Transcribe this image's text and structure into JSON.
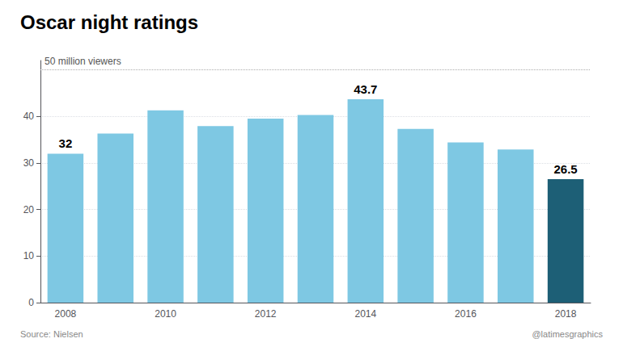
{
  "chart_data": {
    "type": "bar",
    "title": "Oscar night ratings",
    "categories": [
      "2008",
      null,
      "2010",
      null,
      "2012",
      null,
      "2014",
      null,
      "2016",
      null,
      "2018"
    ],
    "values": [
      32.0,
      36.3,
      41.3,
      37.9,
      39.5,
      40.3,
      43.7,
      37.3,
      34.4,
      32.9,
      26.5
    ],
    "value_labels": [
      "32",
      null,
      null,
      null,
      null,
      null,
      "43.7",
      null,
      null,
      null,
      "26.5"
    ],
    "colors": [
      "#7ec8e3",
      "#7ec8e3",
      "#7ec8e3",
      "#7ec8e3",
      "#7ec8e3",
      "#7ec8e3",
      "#7ec8e3",
      "#7ec8e3",
      "#7ec8e3",
      "#7ec8e3",
      "#1d5f76"
    ],
    "ylim": [
      0,
      52
    ],
    "yticks": [
      0,
      10,
      20,
      30,
      40
    ],
    "grid": true,
    "hline": {
      "y": 50,
      "label": "50 million viewers"
    },
    "source": "Source: Nielsen",
    "credit": "@latimesgraphics"
  }
}
